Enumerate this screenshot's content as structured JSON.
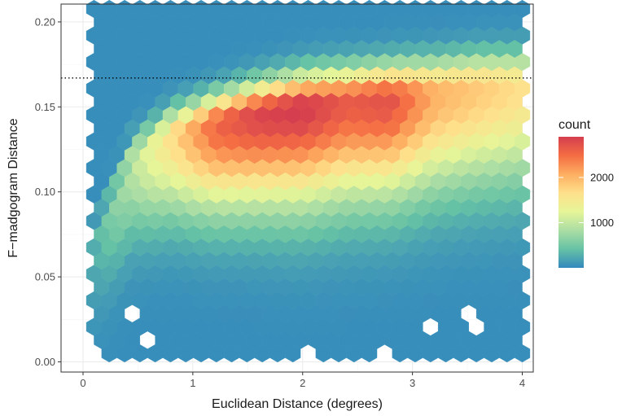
{
  "chart_data": {
    "type": "heatmap",
    "subtype": "hexbin",
    "title": "",
    "xlabel": "Euclidean Distance (degrees)",
    "ylabel": "F−madgogram Distance",
    "xlim": [
      -0.2,
      4.1
    ],
    "ylim": [
      -0.006,
      0.2105
    ],
    "x_ticks": [
      0,
      1,
      2,
      3,
      4
    ],
    "x_tick_labels": [
      "0",
      "1",
      "2",
      "3",
      "4"
    ],
    "y_ticks": [
      0.0,
      0.05,
      0.1,
      0.15,
      0.2
    ],
    "y_tick_labels": [
      "0.00",
      "0.05",
      "0.10",
      "0.15",
      "0.20"
    ],
    "grid": true,
    "hex_extent": {
      "x": [
        0.1,
        4.0
      ],
      "y": [
        0.005,
        0.205
      ]
    },
    "holes": [
      [
        0.4,
        0.025
      ],
      [
        0.54,
        0.0125
      ],
      [
        3.15,
        0.0175
      ],
      [
        3.55,
        0.0175
      ],
      [
        3.55,
        0.03
      ],
      [
        0.15,
        0.005
      ],
      [
        2.1,
        0.005
      ],
      [
        2.7,
        0.005
      ]
    ],
    "reference_line": {
      "y": 0.167,
      "style": "dotted",
      "color": "#000000"
    },
    "ridge": {
      "description": "peak density ridge",
      "x": [
        0.45,
        0.8,
        1.2,
        1.6,
        2.0,
        2.4,
        2.8,
        3.2,
        3.6,
        4.0
      ],
      "y": [
        0.118,
        0.133,
        0.14,
        0.146,
        0.15,
        0.153,
        0.155,
        0.158,
        0.161,
        0.162
      ],
      "count": [
        900,
        1600,
        2500,
        2800,
        2900,
        2600,
        2700,
        2000,
        1800,
        1600
      ]
    },
    "legend": {
      "title": "count",
      "position": "right",
      "ticks": [
        1000,
        2000
      ],
      "tick_labels": [
        "1000",
        "2000"
      ],
      "range": [
        0,
        2900
      ],
      "colormap": "Spectral"
    },
    "colors": {
      "low": "#3288bd",
      "mid_low": "#66c2a5",
      "mid": "#e6f598",
      "mid_high": "#fee08b",
      "high_mid": "#fdae61",
      "high": "#d53e4f",
      "panel_border": "#333333",
      "grid": "#ebebeb"
    }
  }
}
